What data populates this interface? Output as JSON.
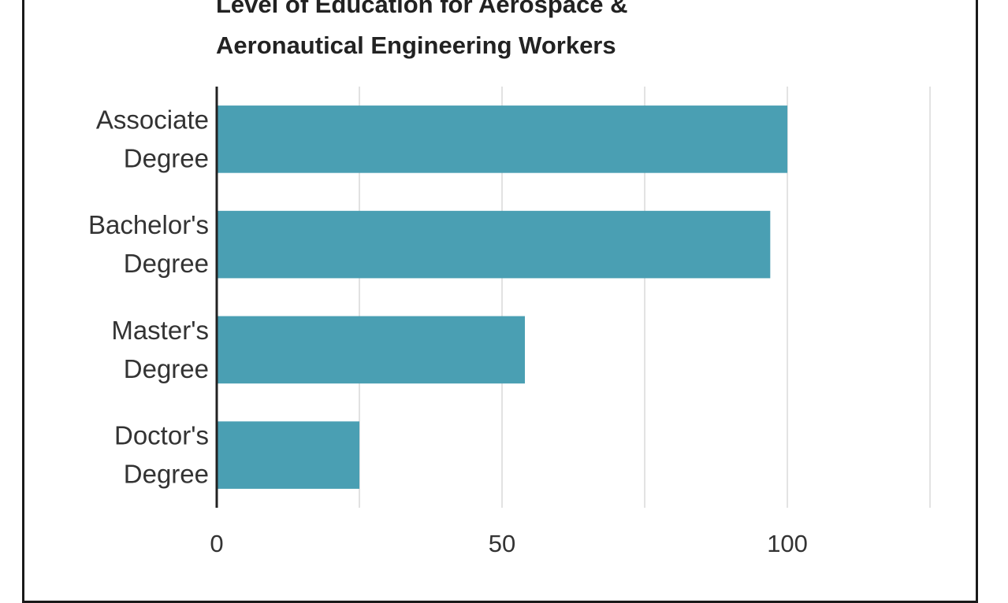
{
  "chart_data": {
    "type": "bar",
    "orientation": "horizontal",
    "title": "Level of Education for Aerospace &\nAeronautical Engineering Workers",
    "categories": [
      [
        "Associate",
        "Degree"
      ],
      [
        "Bachelor's",
        "Degree"
      ],
      [
        "Master's",
        "Degree"
      ],
      [
        "Doctor's",
        "Degree"
      ]
    ],
    "values": [
      100,
      97,
      54,
      25
    ],
    "xlim": [
      0,
      133
    ],
    "xticks": [
      0,
      50,
      100
    ],
    "grid": true,
    "bar_color": "#4a9fb3",
    "xlabel": "",
    "ylabel": ""
  }
}
